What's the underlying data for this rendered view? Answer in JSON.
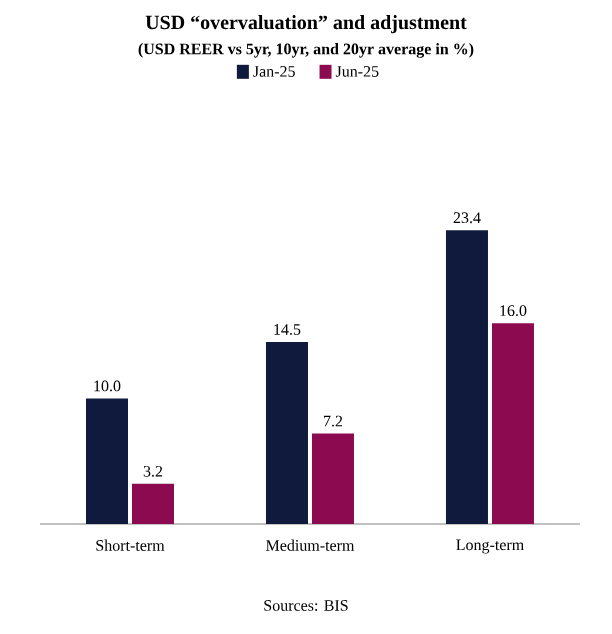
{
  "chart_data": {
    "type": "bar",
    "title": "USD “overvaluation” and adjustment",
    "subtitle": "(USD REER vs 5yr, 10yr, and 20yr average in %)",
    "categories": [
      "Short-term",
      "Medium-term",
      "Long-term"
    ],
    "series": [
      {
        "name": "Jan-25",
        "color": "#0f1a3c",
        "values": [
          10.0,
          14.5,
          23.4
        ],
        "value_labels": [
          "10.0",
          "14.5",
          "23.4"
        ]
      },
      {
        "name": "Jun-25",
        "color": "#8c0a50",
        "values": [
          3.2,
          7.2,
          16.0
        ],
        "value_labels": [
          "3.2",
          "7.2",
          "16.0"
        ]
      }
    ],
    "legend": "top",
    "annotations": [
      "Sources: BIS"
    ]
  }
}
